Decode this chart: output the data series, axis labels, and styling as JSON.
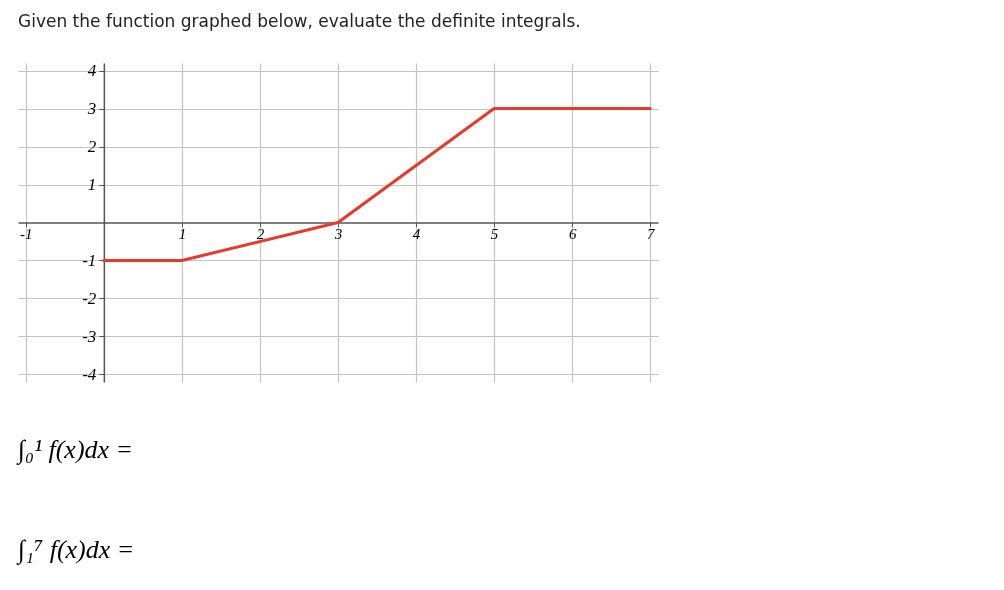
{
  "chart_data": {
    "type": "line",
    "title": "Given the function graphed below, evaluate the definite integrals.",
    "x": [
      0,
      1,
      3,
      5,
      7
    ],
    "series": [
      {
        "color": "#e8392b",
        "values": [
          -1,
          -1,
          0,
          3,
          3
        ]
      }
    ],
    "xlim": [
      -1.1,
      7.1
    ],
    "ylim": [
      -4.2,
      4.2
    ],
    "xticks": [
      -1,
      1,
      2,
      3,
      4,
      5,
      6,
      7
    ],
    "yticks": [
      -4,
      -3,
      -2,
      -1,
      1,
      2,
      3,
      4
    ],
    "grid": true,
    "annotations": [
      "∫₀¹ f(x)dx =",
      "∫₁⁷ f(x)dx ="
    ]
  }
}
